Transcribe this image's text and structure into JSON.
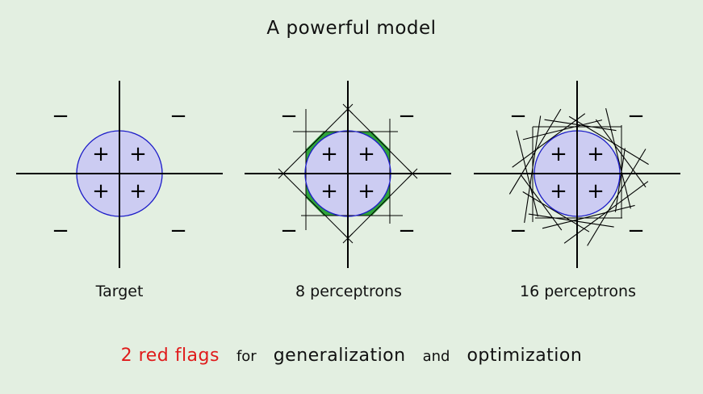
{
  "title": "A powerful model",
  "panels": [
    {
      "caption": "Target",
      "perceptrons": 0
    },
    {
      "caption": "8 perceptrons",
      "perceptrons": 8
    },
    {
      "caption": "16 perceptrons",
      "perceptrons": 16
    }
  ],
  "symbols": {
    "inside": "+",
    "outside": "−"
  },
  "footer": {
    "flags": "2 red flags",
    "for": "for",
    "generalization": "generalization",
    "and": "and",
    "optimization": "optimization"
  },
  "colors": {
    "background": "#e3efe1",
    "disk_fill": "#ccccf2",
    "disk_stroke": "#1c1cc8",
    "approx_fill": "#2ea33b",
    "flags": "#e01b1b"
  }
}
